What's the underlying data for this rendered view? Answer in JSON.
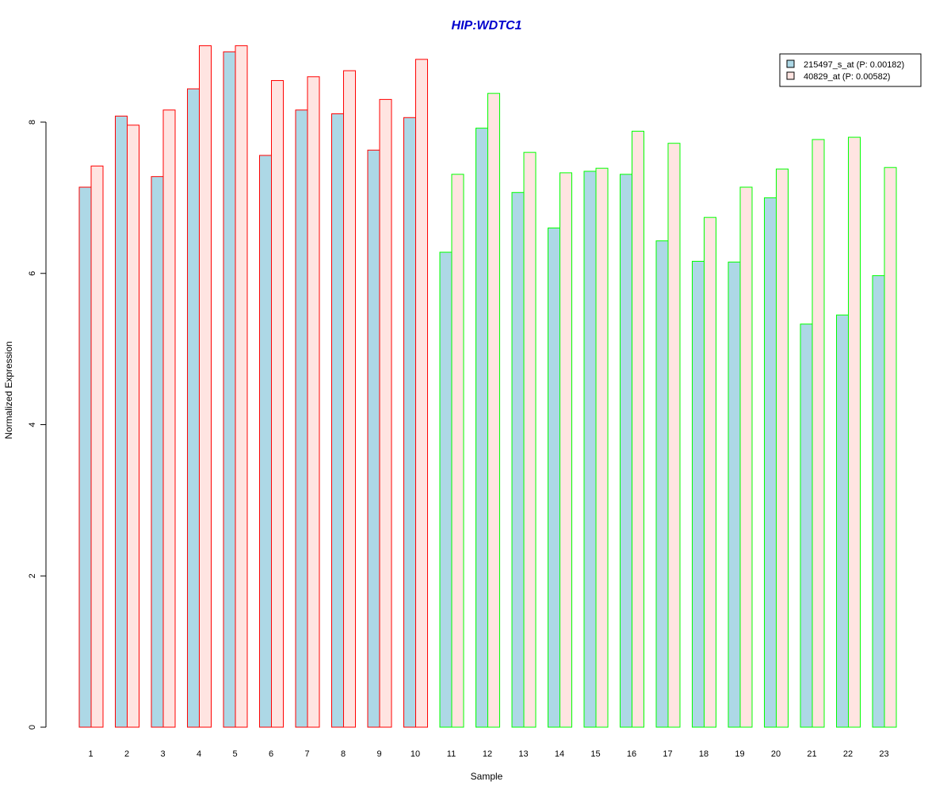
{
  "chart_data": {
    "type": "bar",
    "title": "HIP:WDTC1",
    "xlabel": "Sample",
    "ylabel": "Normalized Expression",
    "ylim": [
      0,
      9.1
    ],
    "yticks": [
      "0",
      "2",
      "4",
      "6",
      "8"
    ],
    "categories": [
      "1",
      "2",
      "3",
      "4",
      "5",
      "6",
      "7",
      "8",
      "9",
      "10",
      "11",
      "12",
      "13",
      "14",
      "15",
      "16",
      "17",
      "18",
      "19",
      "20",
      "21",
      "22",
      "23"
    ],
    "series": [
      {
        "name": "215497_s_at (P: 0.00182)",
        "fill": "#add8e6",
        "values": [
          7.14,
          8.08,
          7.28,
          8.44,
          8.93,
          7.56,
          8.16,
          8.11,
          7.63,
          8.06,
          6.28,
          7.92,
          7.07,
          6.6,
          7.35,
          7.31,
          6.43,
          6.16,
          6.15,
          7.0,
          5.33,
          5.45,
          5.97
        ]
      },
      {
        "name": "40829_at (P: 0.00582)",
        "fill": "#ffe4e1",
        "values": [
          7.42,
          7.96,
          8.16,
          9.01,
          9.01,
          8.55,
          8.6,
          8.68,
          8.3,
          8.83,
          7.31,
          8.38,
          7.6,
          7.33,
          7.39,
          7.88,
          7.72,
          6.74,
          7.14,
          7.38,
          7.77,
          7.8,
          7.4
        ]
      }
    ],
    "group_border_colors": [
      "#ff0000",
      "#ff0000",
      "#ff0000",
      "#ff0000",
      "#ff0000",
      "#ff0000",
      "#ff0000",
      "#ff0000",
      "#ff0000",
      "#ff0000",
      "#00ff00",
      "#00ff00",
      "#00ff00",
      "#00ff00",
      "#00ff00",
      "#00ff00",
      "#00ff00",
      "#00ff00",
      "#00ff00",
      "#00ff00",
      "#00ff00",
      "#00ff00",
      "#00ff00"
    ],
    "title_color": "#0000cd",
    "grid": false,
    "legend_position": "top-right"
  }
}
